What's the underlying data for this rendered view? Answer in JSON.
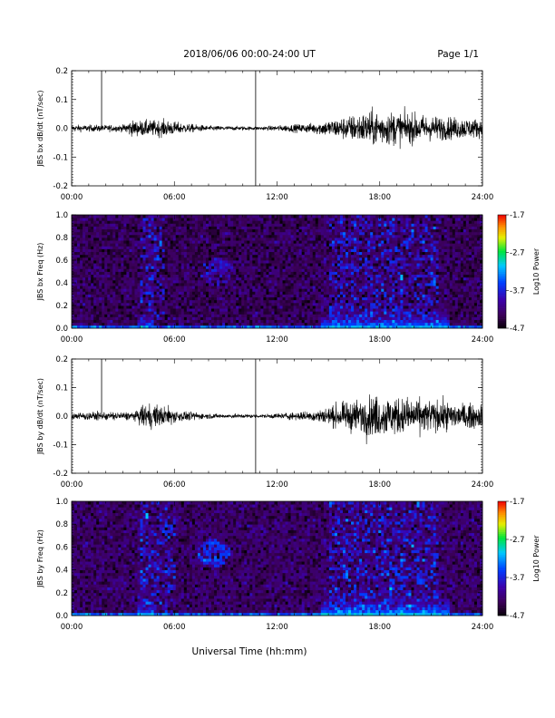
{
  "header": {
    "date_range": "2018/06/06  00:00-24:00 UT",
    "page": "Page 1/1"
  },
  "x_axis": {
    "label": "Universal Time (hh:mm)",
    "range_hours": [
      0,
      24
    ],
    "ticks": [
      {
        "hour": 0,
        "label": "00:00"
      },
      {
        "hour": 6,
        "label": "06:00"
      },
      {
        "hour": 12,
        "label": "12:00"
      },
      {
        "hour": 18,
        "label": "18:00"
      },
      {
        "hour": 24,
        "label": "24:00"
      }
    ]
  },
  "chart_data": [
    {
      "type": "line",
      "ylabel": "JBS bx dB/dt (nT/sec)",
      "ylim": [
        -0.2,
        0.2
      ],
      "yticks": [
        {
          "v": 0.2,
          "label": "0.2"
        },
        {
          "v": 0.1,
          "label": "0.1"
        },
        {
          "v": 0.0,
          "label": "0.0"
        },
        {
          "v": -0.1,
          "label": "-0.1"
        },
        {
          "v": -0.2,
          "label": "-0.2"
        }
      ],
      "spikes_hours": [
        1.75,
        10.75
      ],
      "amplitude_envelope": [
        {
          "hour": 0,
          "amp": 0.008
        },
        {
          "hour": 3,
          "amp": 0.008
        },
        {
          "hour": 3.3,
          "amp": 0.018
        },
        {
          "hour": 5.5,
          "amp": 0.02
        },
        {
          "hour": 6.5,
          "amp": 0.012
        },
        {
          "hour": 8,
          "amp": 0.006
        },
        {
          "hour": 11,
          "amp": 0.004
        },
        {
          "hour": 14,
          "amp": 0.012
        },
        {
          "hour": 16,
          "amp": 0.028
        },
        {
          "hour": 17.5,
          "amp": 0.042
        },
        {
          "hour": 19,
          "amp": 0.04
        },
        {
          "hour": 21,
          "amp": 0.03
        },
        {
          "hour": 24,
          "amp": 0.022
        }
      ]
    },
    {
      "type": "heatmap",
      "ylabel": "JBS bx Freq (Hz)",
      "ylim": [
        0,
        1.0
      ],
      "yticks": [
        {
          "v": 0.0,
          "label": "0.0"
        },
        {
          "v": 0.2,
          "label": "0.2"
        },
        {
          "v": 0.4,
          "label": "0.4"
        },
        {
          "v": 0.6,
          "label": "0.6"
        },
        {
          "v": 0.8,
          "label": "0.8"
        },
        {
          "v": 1.0,
          "label": "1.0"
        }
      ],
      "colorbar": {
        "label": "Log10 Power",
        "range": [
          -4.7,
          -1.7
        ],
        "ticks": [
          "-1.7",
          "-2.7",
          "-3.7",
          "-4.7"
        ]
      },
      "features": {
        "background_level": -4.35,
        "low_freq_enhancement": [
          {
            "from": 3.9,
            "to": 4.8,
            "level": -3.3
          },
          {
            "from": 14.5,
            "to": 22,
            "level": -3.0
          }
        ],
        "broadband_activity": [
          {
            "from": 4.0,
            "to": 5.5
          },
          {
            "from": 15.0,
            "to": 21.5
          }
        ],
        "blob": {
          "hour": 8.5,
          "freq": 0.5,
          "level": -3.9
        }
      }
    },
    {
      "type": "line",
      "ylabel": "JBS by dB/dt (nT/sec)",
      "ylim": [
        -0.2,
        0.2
      ],
      "yticks": [
        {
          "v": 0.2,
          "label": "0.2"
        },
        {
          "v": 0.1,
          "label": "0.1"
        },
        {
          "v": 0.0,
          "label": "0.0"
        },
        {
          "v": -0.1,
          "label": "-0.1"
        },
        {
          "v": -0.2,
          "label": "-0.2"
        }
      ],
      "spikes_hours": [
        1.75,
        10.75
      ],
      "amplitude_envelope": [
        {
          "hour": 0,
          "amp": 0.01
        },
        {
          "hour": 3.8,
          "amp": 0.01
        },
        {
          "hour": 4.1,
          "amp": 0.03
        },
        {
          "hour": 5.5,
          "amp": 0.024
        },
        {
          "hour": 6.5,
          "amp": 0.012
        },
        {
          "hour": 8,
          "amp": 0.006
        },
        {
          "hour": 11,
          "amp": 0.004
        },
        {
          "hour": 14,
          "amp": 0.012
        },
        {
          "hour": 16,
          "amp": 0.032
        },
        {
          "hour": 17.5,
          "amp": 0.05
        },
        {
          "hour": 19,
          "amp": 0.046
        },
        {
          "hour": 21,
          "amp": 0.038
        },
        {
          "hour": 24,
          "amp": 0.026
        }
      ]
    },
    {
      "type": "heatmap",
      "ylabel": "JBS by Freq (Hz)",
      "ylim": [
        0,
        1.0
      ],
      "yticks": [
        {
          "v": 0.0,
          "label": "0.0"
        },
        {
          "v": 0.2,
          "label": "0.2"
        },
        {
          "v": 0.4,
          "label": "0.4"
        },
        {
          "v": 0.6,
          "label": "0.6"
        },
        {
          "v": 0.8,
          "label": "0.8"
        },
        {
          "v": 1.0,
          "label": "1.0"
        }
      ],
      "colorbar": {
        "label": "Log10 Power",
        "range": [
          -4.7,
          -1.7
        ],
        "ticks": [
          "-1.7",
          "-2.7",
          "-3.7",
          "-4.7"
        ]
      },
      "features": {
        "background_level": -4.3,
        "low_freq_enhancement": [
          {
            "from": 3.9,
            "to": 4.8,
            "level": -3.1
          },
          {
            "from": 14.5,
            "to": 22,
            "level": -2.9
          }
        ],
        "broadband_activity": [
          {
            "from": 4.0,
            "to": 6.0
          },
          {
            "from": 15.0,
            "to": 21.5
          }
        ],
        "blob": {
          "hour": 8.3,
          "freq": 0.55,
          "level": -3.6
        }
      }
    }
  ]
}
